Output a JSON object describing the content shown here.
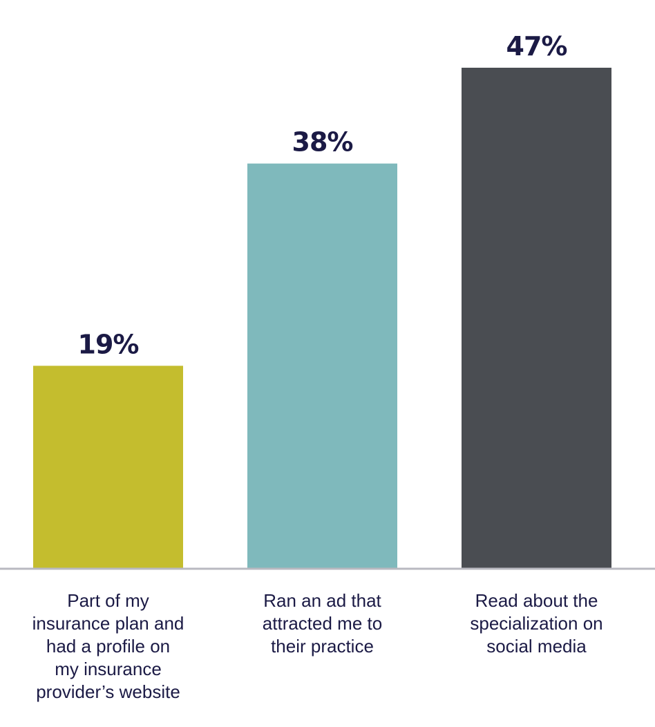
{
  "chart_data": {
    "type": "bar",
    "categories": [
      [
        "Part of my",
        "insurance plan and",
        "had a profile on",
        "my insurance",
        "provider’s website"
      ],
      [
        "Ran an ad that",
        "attracted me to",
        "their practice"
      ],
      [
        "Read about the",
        "specialization on",
        "social media"
      ]
    ],
    "values": [
      19,
      38,
      47
    ],
    "value_labels": [
      "19%",
      "38%",
      "47%"
    ],
    "unit": "%",
    "ylim": [
      0,
      47
    ],
    "grid": false,
    "bar_colors": [
      "#c4bd2e",
      "#7fb9bc",
      "#4a4d52"
    ],
    "value_label_color": "#1b1a45",
    "category_label_color": "#1b1a45",
    "axis_color": "#b9b9c0"
  }
}
